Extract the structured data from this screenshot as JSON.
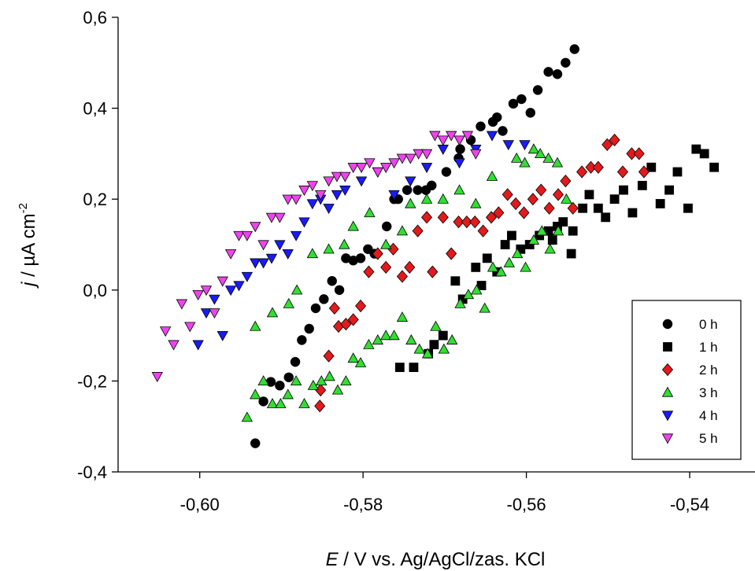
{
  "chart_data": {
    "type": "scatter",
    "title": "",
    "xlabel": {
      "symbol": "E",
      "rest": " / V vs. Ag/AgCl/zas. KCl"
    },
    "ylabel": {
      "symbol": "j",
      "rest": " / µA cm",
      "sup": "-2"
    },
    "xlim": [
      -0.61,
      -0.532
    ],
    "ylim": [
      -0.4,
      0.6
    ],
    "x_ticks": [
      -0.6,
      -0.58,
      -0.56,
      -0.54
    ],
    "x_tick_labels": [
      "-0,60",
      "-0,58",
      "-0,56",
      "-0,54"
    ],
    "y_ticks": [
      -0.4,
      -0.2,
      0.0,
      0.2,
      0.4,
      0.6
    ],
    "y_tick_labels": [
      "-0,4",
      "-0,2",
      "0,0",
      "0,2",
      "0,4",
      "0,6"
    ],
    "grid": false,
    "legend_position": "bottom-right",
    "series": [
      {
        "name": "0 h",
        "marker": "circle",
        "color": "#000000",
        "points": [
          [
            -0.5932,
            -0.337
          ],
          [
            -0.5922,
            -0.245
          ],
          [
            -0.5913,
            -0.202
          ],
          [
            -0.5902,
            -0.21
          ],
          [
            -0.5891,
            -0.192
          ],
          [
            -0.5883,
            -0.158
          ],
          [
            -0.5875,
            -0.11
          ],
          [
            -0.5866,
            -0.085
          ],
          [
            -0.5858,
            -0.04
          ],
          [
            -0.5848,
            -0.02
          ],
          [
            -0.5838,
            0.02
          ],
          [
            -0.5829,
            0.0
          ],
          [
            -0.5812,
            0.065
          ],
          [
            -0.5803,
            0.07
          ],
          [
            -0.5794,
            0.09
          ],
          [
            -0.5786,
            0.08
          ],
          [
            -0.5771,
            0.14
          ],
          [
            -0.5757,
            0.2
          ],
          [
            -0.5746,
            0.22
          ],
          [
            -0.5733,
            0.22
          ],
          [
            -0.5716,
            0.23
          ],
          [
            -0.5698,
            0.26
          ],
          [
            -0.5683,
            0.29
          ],
          [
            -0.5668,
            0.33
          ],
          [
            -0.5656,
            0.36
          ],
          [
            -0.5641,
            0.37
          ],
          [
            -0.5629,
            0.35
          ],
          [
            -0.5616,
            0.41
          ],
          [
            -0.5606,
            0.42
          ],
          [
            -0.5595,
            0.39
          ],
          [
            -0.5586,
            0.44
          ],
          [
            -0.5573,
            0.48
          ],
          [
            -0.5562,
            0.475
          ],
          [
            -0.5552,
            0.5
          ],
          [
            -0.5541,
            0.53
          ],
          [
            -0.5636,
            0.38
          ],
          [
            -0.5681,
            0.31
          ],
          [
            -0.5723,
            0.22
          ],
          [
            -0.5762,
            0.2
          ],
          [
            -0.5821,
            0.07
          ]
        ]
      },
      {
        "name": "1 h",
        "marker": "square",
        "color": "#000000",
        "points": [
          [
            -0.5755,
            -0.17
          ],
          [
            -0.5738,
            -0.17
          ],
          [
            -0.572,
            -0.14
          ],
          [
            -0.5702,
            -0.1
          ],
          [
            -0.5713,
            -0.12
          ],
          [
            -0.5687,
            0.02
          ],
          [
            -0.5678,
            -0.02
          ],
          [
            -0.5662,
            0.05
          ],
          [
            -0.5655,
            0.01
          ],
          [
            -0.5648,
            0.07
          ],
          [
            -0.5636,
            0.04
          ],
          [
            -0.5626,
            0.1
          ],
          [
            -0.5618,
            0.12
          ],
          [
            -0.5607,
            0.09
          ],
          [
            -0.5596,
            0.1
          ],
          [
            -0.5584,
            0.12
          ],
          [
            -0.5573,
            0.13
          ],
          [
            -0.5562,
            0.14
          ],
          [
            -0.5555,
            0.15
          ],
          [
            -0.5543,
            0.13
          ],
          [
            -0.5531,
            0.18
          ],
          [
            -0.5523,
            0.21
          ],
          [
            -0.5512,
            0.18
          ],
          [
            -0.5503,
            0.16
          ],
          [
            -0.5492,
            0.2
          ],
          [
            -0.5481,
            0.22
          ],
          [
            -0.547,
            0.17
          ],
          [
            -0.5458,
            0.23
          ],
          [
            -0.5447,
            0.27
          ],
          [
            -0.5436,
            0.19
          ],
          [
            -0.5425,
            0.22
          ],
          [
            -0.5415,
            0.26
          ],
          [
            -0.5402,
            0.18
          ],
          [
            -0.5392,
            0.31
          ],
          [
            -0.5382,
            0.3
          ],
          [
            -0.537,
            0.27
          ],
          [
            -0.5545,
            0.08
          ],
          [
            -0.5568,
            0.11
          ]
        ]
      },
      {
        "name": "2 h",
        "marker": "diamond",
        "color": "#e31a1c",
        "points": [
          [
            -0.5853,
            -0.255
          ],
          [
            -0.5852,
            -0.22
          ],
          [
            -0.5842,
            -0.145
          ],
          [
            -0.5835,
            -0.04
          ],
          [
            -0.583,
            -0.08
          ],
          [
            -0.5821,
            -0.075
          ],
          [
            -0.5812,
            -0.065
          ],
          [
            -0.5803,
            -0.035
          ],
          [
            -0.5793,
            0.04
          ],
          [
            -0.5782,
            0.08
          ],
          [
            -0.5772,
            0.05
          ],
          [
            -0.5763,
            0.09
          ],
          [
            -0.5752,
            0.03
          ],
          [
            -0.5743,
            0.05
          ],
          [
            -0.5733,
            0.13
          ],
          [
            -0.5722,
            0.16
          ],
          [
            -0.5715,
            0.04
          ],
          [
            -0.5702,
            0.16
          ],
          [
            -0.5692,
            0.08
          ],
          [
            -0.5683,
            0.15
          ],
          [
            -0.5673,
            0.15
          ],
          [
            -0.5663,
            0.15
          ],
          [
            -0.5653,
            0.13
          ],
          [
            -0.5643,
            0.16
          ],
          [
            -0.5634,
            0.17
          ],
          [
            -0.5623,
            0.21
          ],
          [
            -0.5613,
            0.19
          ],
          [
            -0.5603,
            0.17
          ],
          [
            -0.5592,
            0.2
          ],
          [
            -0.5582,
            0.22
          ],
          [
            -0.5572,
            0.18
          ],
          [
            -0.5561,
            0.21
          ],
          [
            -0.5552,
            0.24
          ],
          [
            -0.5543,
            0.18
          ],
          [
            -0.5532,
            0.26
          ],
          [
            -0.5521,
            0.27
          ],
          [
            -0.5512,
            0.27
          ],
          [
            -0.5501,
            0.32
          ],
          [
            -0.5492,
            0.33
          ],
          [
            -0.5482,
            0.26
          ],
          [
            -0.5471,
            0.3
          ],
          [
            -0.5462,
            0.3
          ],
          [
            -0.5456,
            0.26
          ]
        ]
      },
      {
        "name": "3 h",
        "marker": "triangle-up",
        "color": "#33dd33",
        "points": [
          [
            -0.5942,
            -0.28
          ],
          [
            -0.5932,
            -0.23
          ],
          [
            -0.5922,
            -0.2
          ],
          [
            -0.5911,
            -0.25
          ],
          [
            -0.5901,
            -0.25
          ],
          [
            -0.5892,
            -0.23
          ],
          [
            -0.5882,
            -0.2
          ],
          [
            -0.5872,
            -0.25
          ],
          [
            -0.5861,
            -0.21
          ],
          [
            -0.5851,
            -0.2
          ],
          [
            -0.5841,
            -0.19
          ],
          [
            -0.5831,
            -0.22
          ],
          [
            -0.5821,
            -0.2
          ],
          [
            -0.5812,
            -0.15
          ],
          [
            -0.5803,
            -0.16
          ],
          [
            -0.5793,
            -0.12
          ],
          [
            -0.5782,
            -0.11
          ],
          [
            -0.5772,
            -0.1
          ],
          [
            -0.5762,
            -0.1
          ],
          [
            -0.5752,
            -0.06
          ],
          [
            -0.5741,
            -0.11
          ],
          [
            -0.5731,
            -0.13
          ],
          [
            -0.5721,
            -0.14
          ],
          [
            -0.5711,
            -0.08
          ],
          [
            -0.5701,
            -0.13
          ],
          [
            -0.5691,
            -0.11
          ],
          [
            -0.5681,
            -0.03
          ],
          [
            -0.5671,
            -0.01
          ],
          [
            -0.5661,
            0.0
          ],
          [
            -0.5651,
            -0.04
          ],
          [
            -0.5641,
            0.05
          ],
          [
            -0.5631,
            0.04
          ],
          [
            -0.5621,
            0.06
          ],
          [
            -0.5611,
            0.08
          ],
          [
            -0.5601,
            0.05
          ],
          [
            -0.5591,
            0.11
          ],
          [
            -0.5581,
            0.13
          ],
          [
            -0.5571,
            0.09
          ],
          [
            -0.5561,
            0.13
          ],
          [
            -0.5551,
            0.2
          ],
          [
            -0.5612,
            0.29
          ],
          [
            -0.5602,
            0.28
          ],
          [
            -0.5591,
            0.31
          ],
          [
            -0.5583,
            0.3
          ],
          [
            -0.5573,
            0.29
          ],
          [
            -0.5562,
            0.28
          ],
          [
            -0.5932,
            -0.08
          ],
          [
            -0.5911,
            -0.05
          ],
          [
            -0.5891,
            -0.03
          ],
          [
            -0.5881,
            0.0
          ],
          [
            -0.5862,
            0.08
          ],
          [
            -0.5842,
            0.09
          ],
          [
            -0.5823,
            0.1
          ],
          [
            -0.5812,
            0.14
          ],
          [
            -0.5792,
            0.17
          ],
          [
            -0.5772,
            0.1
          ],
          [
            -0.5752,
            0.13
          ],
          [
            -0.5742,
            0.19
          ],
          [
            -0.5722,
            0.2
          ],
          [
            -0.5702,
            0.2
          ],
          [
            -0.5682,
            0.22
          ],
          [
            -0.5662,
            0.19
          ],
          [
            -0.5642,
            0.25
          ]
        ]
      },
      {
        "name": "4 h",
        "marker": "triangle-down",
        "color": "#1a1aff",
        "points": [
          [
            -0.6002,
            -0.12
          ],
          [
            -0.5992,
            -0.05
          ],
          [
            -0.5982,
            -0.02
          ],
          [
            -0.5972,
            -0.1
          ],
          [
            -0.5962,
            0.0
          ],
          [
            -0.5952,
            0.01
          ],
          [
            -0.5942,
            0.03
          ],
          [
            -0.5932,
            0.06
          ],
          [
            -0.5922,
            0.06
          ],
          [
            -0.5912,
            0.07
          ],
          [
            -0.5902,
            0.1
          ],
          [
            -0.5892,
            0.08
          ],
          [
            -0.5882,
            0.12
          ],
          [
            -0.5872,
            0.15
          ],
          [
            -0.5862,
            0.19
          ],
          [
            -0.5852,
            0.2
          ],
          [
            -0.5842,
            0.18
          ],
          [
            -0.5832,
            0.21
          ],
          [
            -0.5822,
            0.22
          ],
          [
            -0.5802,
            0.24
          ],
          [
            -0.5782,
            0.26
          ],
          [
            -0.5762,
            0.21
          ],
          [
            -0.5742,
            0.24
          ],
          [
            -0.5722,
            0.27
          ],
          [
            -0.5702,
            0.31
          ],
          [
            -0.5682,
            0.28
          ],
          [
            -0.5662,
            0.31
          ],
          [
            -0.5642,
            0.34
          ],
          [
            -0.5622,
            0.32
          ],
          [
            -0.5602,
            0.32
          ]
        ]
      },
      {
        "name": "5 h",
        "marker": "triangle-down",
        "color": "#ee44ee",
        "points": [
          [
            -0.6052,
            -0.19
          ],
          [
            -0.6042,
            -0.09
          ],
          [
            -0.6032,
            -0.12
          ],
          [
            -0.6022,
            -0.03
          ],
          [
            -0.6012,
            -0.08
          ],
          [
            -0.6002,
            -0.01
          ],
          [
            -0.5992,
            0.0
          ],
          [
            -0.5982,
            -0.05
          ],
          [
            -0.5972,
            0.02
          ],
          [
            -0.5962,
            0.08
          ],
          [
            -0.5952,
            0.12
          ],
          [
            -0.5942,
            0.12
          ],
          [
            -0.5932,
            0.14
          ],
          [
            -0.5922,
            0.1
          ],
          [
            -0.5912,
            0.16
          ],
          [
            -0.5902,
            0.16
          ],
          [
            -0.5892,
            0.2
          ],
          [
            -0.5882,
            0.2
          ],
          [
            -0.5872,
            0.22
          ],
          [
            -0.5862,
            0.23
          ],
          [
            -0.5852,
            0.21
          ],
          [
            -0.5842,
            0.24
          ],
          [
            -0.5832,
            0.25
          ],
          [
            -0.5822,
            0.25
          ],
          [
            -0.5812,
            0.27
          ],
          [
            -0.5802,
            0.27
          ],
          [
            -0.5792,
            0.28
          ],
          [
            -0.5782,
            0.26
          ],
          [
            -0.5772,
            0.27
          ],
          [
            -0.5762,
            0.28
          ],
          [
            -0.5752,
            0.29
          ],
          [
            -0.5742,
            0.29
          ],
          [
            -0.5732,
            0.3
          ],
          [
            -0.5722,
            0.3
          ],
          [
            -0.5712,
            0.34
          ],
          [
            -0.5702,
            0.33
          ],
          [
            -0.5692,
            0.34
          ],
          [
            -0.5682,
            0.33
          ],
          [
            -0.5672,
            0.34
          ],
          [
            -0.5662,
            0.3
          ]
        ]
      }
    ]
  }
}
